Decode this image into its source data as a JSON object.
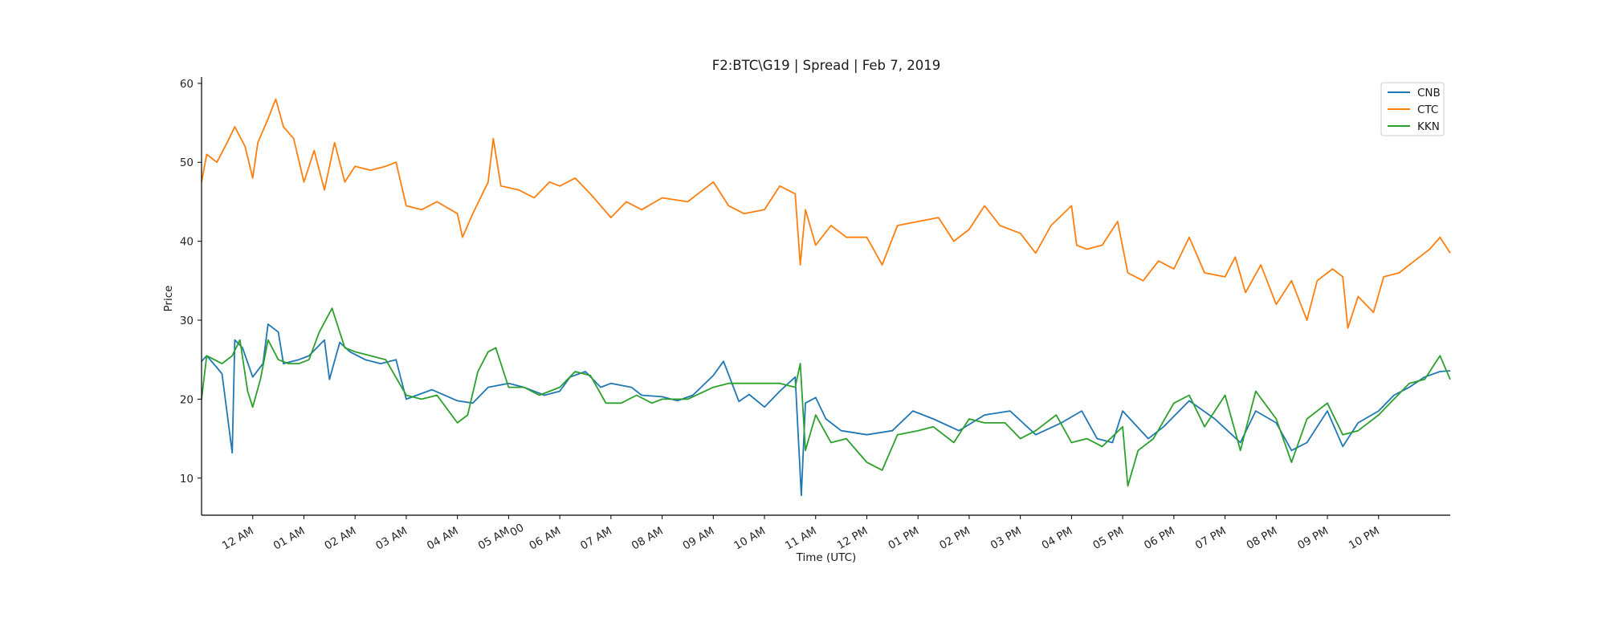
{
  "chart_data": {
    "type": "line",
    "title": "F2:BTC\\G19 | Spread | Feb 7, 2019",
    "xlabel": "Time (UTC)",
    "ylabel": "Price",
    "ylim": [
      5.3,
      60.8
    ],
    "yticks": [
      10,
      20,
      30,
      40,
      50,
      60
    ],
    "x_unit": "hours (UTC) on Feb 7, 2019",
    "xlim": [
      23.38,
      23.4
    ],
    "xticks": [
      {
        "label": "12 AM",
        "hour": 0
      },
      {
        "label": "01 AM",
        "hour": 1
      },
      {
        "label": "02 AM",
        "hour": 2
      },
      {
        "label": "03 AM",
        "hour": 3
      },
      {
        "label": "04 AM",
        "hour": 4
      },
      {
        "label": "05 AM",
        "hour": 5
      },
      {
        "label": "06 AM",
        "hour": 6
      },
      {
        "label": "07 AM",
        "hour": 7
      },
      {
        "label": "08 AM",
        "hour": 8
      },
      {
        "label": "09 AM",
        "hour": 9
      },
      {
        "label": "10 AM",
        "hour": 10
      },
      {
        "label": "11 AM",
        "hour": 11
      },
      {
        "label": "12 PM",
        "hour": 12
      },
      {
        "label": "01 PM",
        "hour": 13
      },
      {
        "label": "02 PM",
        "hour": 14
      },
      {
        "label": "03 PM",
        "hour": 15
      },
      {
        "label": "04 PM",
        "hour": 16
      },
      {
        "label": "05 PM",
        "hour": 17
      },
      {
        "label": "06 PM",
        "hour": 18
      },
      {
        "label": "07 PM",
        "hour": 19
      },
      {
        "label": "08 PM",
        "hour": 20
      },
      {
        "label": "09 PM",
        "hour": 21
      },
      {
        "label": "10 PM",
        "hour": 22
      }
    ],
    "stray_label": {
      "text": "00",
      "hour": 5.0
    },
    "legend_position": "top-right",
    "grid": false,
    "series": [
      {
        "name": "CNB",
        "color": "#1f77b4",
        "points": [
          [
            -1.0,
            24.8
          ],
          [
            -0.9,
            25.5
          ],
          [
            -0.7,
            24.0
          ],
          [
            -0.6,
            23.2
          ],
          [
            -0.4,
            13.2
          ],
          [
            -0.35,
            27.5
          ],
          [
            -0.2,
            26.5
          ],
          [
            0.0,
            22.8
          ],
          [
            0.2,
            24.5
          ],
          [
            0.3,
            29.5
          ],
          [
            0.5,
            28.5
          ],
          [
            0.6,
            24.5
          ],
          [
            0.9,
            25.0
          ],
          [
            1.1,
            25.5
          ],
          [
            1.4,
            27.5
          ],
          [
            1.5,
            22.5
          ],
          [
            1.7,
            27.2
          ],
          [
            1.9,
            26.0
          ],
          [
            2.2,
            25.0
          ],
          [
            2.5,
            24.5
          ],
          [
            2.8,
            25.0
          ],
          [
            3.0,
            20.0
          ],
          [
            3.5,
            21.2
          ],
          [
            4.0,
            19.8
          ],
          [
            4.3,
            19.5
          ],
          [
            4.6,
            21.5
          ],
          [
            5.0,
            22.0
          ],
          [
            5.3,
            21.5
          ],
          [
            5.7,
            20.5
          ],
          [
            6.0,
            21.0
          ],
          [
            6.2,
            22.8
          ],
          [
            6.5,
            23.5
          ],
          [
            6.8,
            21.5
          ],
          [
            7.0,
            22.0
          ],
          [
            7.4,
            21.5
          ],
          [
            7.6,
            20.5
          ],
          [
            8.0,
            20.3
          ],
          [
            8.3,
            19.8
          ],
          [
            8.6,
            20.5
          ],
          [
            9.0,
            23.0
          ],
          [
            9.2,
            24.8
          ],
          [
            9.5,
            19.7
          ],
          [
            9.7,
            20.6
          ],
          [
            10.0,
            19.0
          ],
          [
            10.3,
            21.0
          ],
          [
            10.6,
            22.8
          ],
          [
            10.72,
            7.8
          ],
          [
            10.8,
            19.5
          ],
          [
            11.0,
            20.2
          ],
          [
            11.2,
            17.5
          ],
          [
            11.5,
            16.0
          ],
          [
            12.0,
            15.5
          ],
          [
            12.5,
            16.0
          ],
          [
            12.9,
            18.5
          ],
          [
            13.3,
            17.5
          ],
          [
            13.8,
            16.0
          ],
          [
            14.3,
            18.0
          ],
          [
            14.8,
            18.5
          ],
          [
            15.3,
            15.5
          ],
          [
            15.8,
            17.0
          ],
          [
            16.2,
            18.5
          ],
          [
            16.5,
            15.0
          ],
          [
            16.8,
            14.5
          ],
          [
            17.0,
            18.5
          ],
          [
            17.5,
            15.0
          ],
          [
            17.8,
            16.5
          ],
          [
            18.3,
            19.8
          ],
          [
            18.8,
            17.5
          ],
          [
            19.3,
            14.5
          ],
          [
            19.6,
            18.5
          ],
          [
            20.0,
            17.0
          ],
          [
            20.3,
            13.5
          ],
          [
            20.6,
            14.5
          ],
          [
            21.0,
            18.5
          ],
          [
            21.3,
            14.0
          ],
          [
            21.6,
            17.0
          ],
          [
            22.0,
            18.5
          ],
          [
            22.3,
            20.5
          ],
          [
            22.6,
            21.5
          ],
          [
            22.9,
            22.8
          ],
          [
            23.2,
            23.5
          ],
          [
            23.4,
            23.6
          ]
        ]
      },
      {
        "name": "CTC",
        "color": "#ff7f0e",
        "points": [
          [
            -1.0,
            47.5
          ],
          [
            -0.9,
            51.0
          ],
          [
            -0.7,
            50.0
          ],
          [
            -0.5,
            52.5
          ],
          [
            -0.35,
            54.5
          ],
          [
            -0.15,
            52.0
          ],
          [
            0.0,
            48.0
          ],
          [
            0.1,
            52.5
          ],
          [
            0.3,
            55.5
          ],
          [
            0.45,
            58.0
          ],
          [
            0.6,
            54.5
          ],
          [
            0.8,
            53.0
          ],
          [
            1.0,
            47.5
          ],
          [
            1.2,
            51.5
          ],
          [
            1.4,
            46.5
          ],
          [
            1.6,
            52.5
          ],
          [
            1.8,
            47.5
          ],
          [
            2.0,
            49.5
          ],
          [
            2.3,
            49.0
          ],
          [
            2.6,
            49.5
          ],
          [
            2.8,
            50.0
          ],
          [
            3.0,
            44.5
          ],
          [
            3.3,
            44.0
          ],
          [
            3.6,
            45.0
          ],
          [
            4.0,
            43.5
          ],
          [
            4.1,
            40.5
          ],
          [
            4.3,
            43.5
          ],
          [
            4.6,
            47.5
          ],
          [
            4.7,
            53.0
          ],
          [
            4.85,
            47.0
          ],
          [
            5.2,
            46.5
          ],
          [
            5.5,
            45.5
          ],
          [
            5.8,
            47.5
          ],
          [
            6.0,
            47.0
          ],
          [
            6.3,
            48.0
          ],
          [
            6.6,
            46.0
          ],
          [
            7.0,
            43.0
          ],
          [
            7.3,
            45.0
          ],
          [
            7.6,
            44.0
          ],
          [
            8.0,
            45.5
          ],
          [
            8.5,
            45.0
          ],
          [
            9.0,
            47.5
          ],
          [
            9.3,
            44.5
          ],
          [
            9.6,
            43.5
          ],
          [
            10.0,
            44.0
          ],
          [
            10.3,
            47.0
          ],
          [
            10.6,
            46.0
          ],
          [
            10.7,
            37.0
          ],
          [
            10.8,
            44.0
          ],
          [
            11.0,
            39.5
          ],
          [
            11.3,
            42.0
          ],
          [
            11.6,
            40.5
          ],
          [
            12.0,
            40.5
          ],
          [
            12.3,
            37.0
          ],
          [
            12.6,
            42.0
          ],
          [
            13.0,
            42.5
          ],
          [
            13.4,
            43.0
          ],
          [
            13.7,
            40.0
          ],
          [
            14.0,
            41.5
          ],
          [
            14.3,
            44.5
          ],
          [
            14.6,
            42.0
          ],
          [
            15.0,
            41.0
          ],
          [
            15.3,
            38.5
          ],
          [
            15.6,
            42.0
          ],
          [
            16.0,
            44.5
          ],
          [
            16.1,
            39.5
          ],
          [
            16.3,
            39.0
          ],
          [
            16.6,
            39.5
          ],
          [
            16.9,
            42.5
          ],
          [
            17.1,
            36.0
          ],
          [
            17.4,
            35.0
          ],
          [
            17.7,
            37.5
          ],
          [
            18.0,
            36.5
          ],
          [
            18.3,
            40.5
          ],
          [
            18.6,
            36.0
          ],
          [
            19.0,
            35.5
          ],
          [
            19.2,
            38.0
          ],
          [
            19.4,
            33.5
          ],
          [
            19.7,
            37.0
          ],
          [
            20.0,
            32.0
          ],
          [
            20.3,
            35.0
          ],
          [
            20.6,
            30.0
          ],
          [
            20.8,
            35.0
          ],
          [
            21.1,
            36.5
          ],
          [
            21.3,
            35.5
          ],
          [
            21.4,
            29.0
          ],
          [
            21.6,
            33.0
          ],
          [
            21.9,
            31.0
          ],
          [
            22.1,
            35.5
          ],
          [
            22.4,
            36.0
          ],
          [
            22.7,
            37.5
          ],
          [
            23.0,
            39.0
          ],
          [
            23.2,
            40.5
          ],
          [
            23.4,
            38.5
          ]
        ]
      },
      {
        "name": "KKN",
        "color": "#2ca02c",
        "points": [
          [
            -1.0,
            20.0
          ],
          [
            -0.9,
            25.5
          ],
          [
            -0.6,
            24.5
          ],
          [
            -0.4,
            25.5
          ],
          [
            -0.25,
            27.5
          ],
          [
            -0.1,
            21.0
          ],
          [
            0.0,
            19.0
          ],
          [
            0.15,
            22.5
          ],
          [
            0.3,
            27.5
          ],
          [
            0.5,
            25.0
          ],
          [
            0.7,
            24.5
          ],
          [
            0.9,
            24.5
          ],
          [
            1.1,
            25.0
          ],
          [
            1.3,
            28.5
          ],
          [
            1.55,
            31.5
          ],
          [
            1.8,
            26.5
          ],
          [
            2.0,
            26.0
          ],
          [
            2.3,
            25.5
          ],
          [
            2.6,
            25.0
          ],
          [
            3.0,
            20.5
          ],
          [
            3.3,
            20.0
          ],
          [
            3.6,
            20.5
          ],
          [
            4.0,
            17.0
          ],
          [
            4.2,
            18.0
          ],
          [
            4.4,
            23.5
          ],
          [
            4.6,
            26.0
          ],
          [
            4.75,
            26.5
          ],
          [
            5.0,
            21.5
          ],
          [
            5.3,
            21.5
          ],
          [
            5.6,
            20.5
          ],
          [
            6.0,
            21.5
          ],
          [
            6.3,
            23.5
          ],
          [
            6.6,
            23.0
          ],
          [
            6.9,
            19.5
          ],
          [
            7.2,
            19.5
          ],
          [
            7.5,
            20.5
          ],
          [
            7.8,
            19.5
          ],
          [
            8.0,
            20.0
          ],
          [
            8.5,
            20.0
          ],
          [
            9.0,
            21.5
          ],
          [
            9.3,
            22.0
          ],
          [
            9.6,
            22.0
          ],
          [
            10.0,
            22.0
          ],
          [
            10.3,
            22.0
          ],
          [
            10.6,
            21.5
          ],
          [
            10.7,
            24.5
          ],
          [
            10.8,
            13.5
          ],
          [
            11.0,
            18.0
          ],
          [
            11.3,
            14.5
          ],
          [
            11.6,
            15.0
          ],
          [
            12.0,
            12.0
          ],
          [
            12.3,
            11.0
          ],
          [
            12.6,
            15.5
          ],
          [
            13.0,
            16.0
          ],
          [
            13.3,
            16.5
          ],
          [
            13.7,
            14.5
          ],
          [
            14.0,
            17.5
          ],
          [
            14.3,
            17.0
          ],
          [
            14.7,
            17.0
          ],
          [
            15.0,
            15.0
          ],
          [
            15.3,
            16.0
          ],
          [
            15.7,
            18.0
          ],
          [
            16.0,
            14.5
          ],
          [
            16.3,
            15.0
          ],
          [
            16.6,
            14.0
          ],
          [
            17.0,
            16.5
          ],
          [
            17.1,
            9.0
          ],
          [
            17.3,
            13.5
          ],
          [
            17.6,
            15.0
          ],
          [
            18.0,
            19.5
          ],
          [
            18.3,
            20.5
          ],
          [
            18.6,
            16.5
          ],
          [
            19.0,
            20.5
          ],
          [
            19.3,
            13.5
          ],
          [
            19.6,
            21.0
          ],
          [
            20.0,
            17.5
          ],
          [
            20.3,
            12.0
          ],
          [
            20.6,
            17.5
          ],
          [
            21.0,
            19.5
          ],
          [
            21.3,
            15.5
          ],
          [
            21.6,
            16.0
          ],
          [
            22.0,
            18.0
          ],
          [
            22.3,
            20.0
          ],
          [
            22.6,
            22.0
          ],
          [
            22.9,
            22.5
          ],
          [
            23.2,
            25.5
          ],
          [
            23.4,
            22.5
          ]
        ]
      }
    ]
  }
}
